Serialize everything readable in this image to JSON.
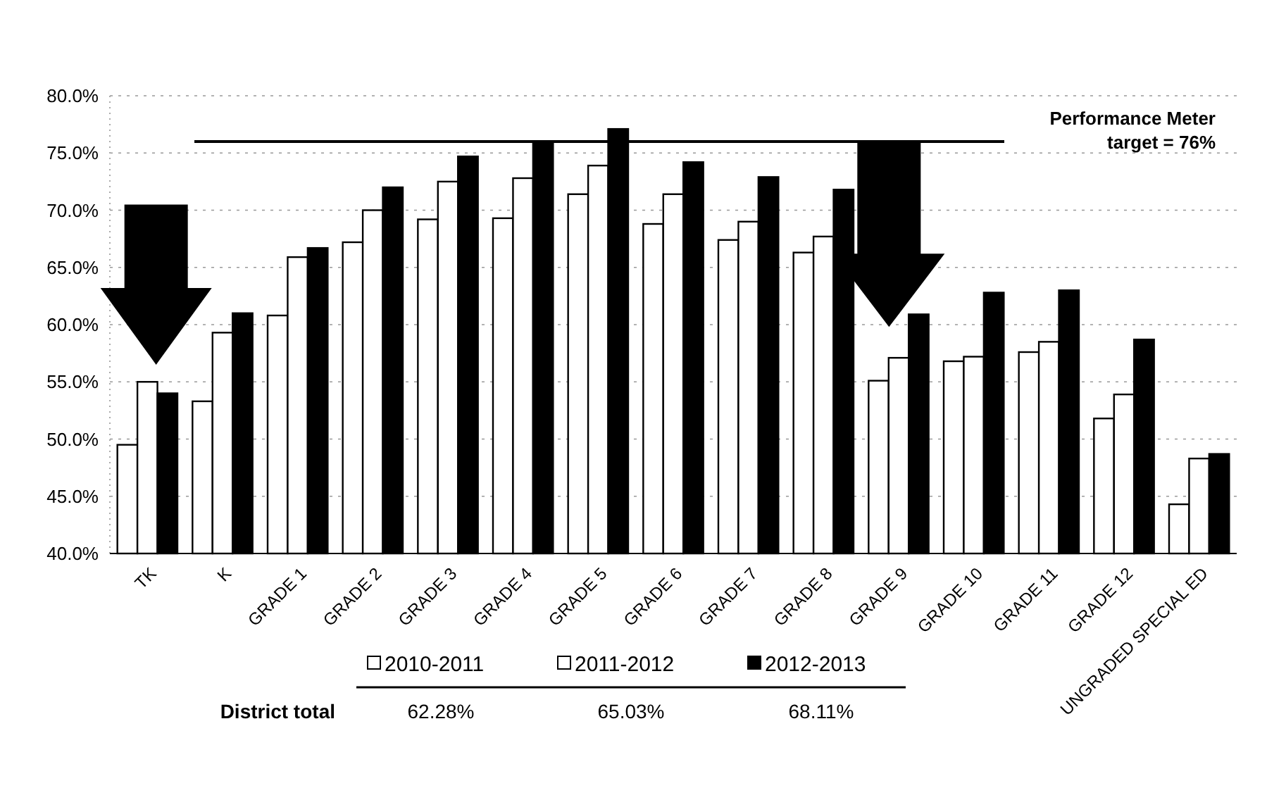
{
  "chart_data": {
    "type": "bar",
    "categories": [
      "TK",
      "K",
      "GRADE 1",
      "GRADE 2",
      "GRADE 3",
      "GRADE 4",
      "GRADE 5",
      "GRADE 6",
      "GRADE 7",
      "GRADE 8",
      "GRADE 9",
      "GRADE 10",
      "GRADE 11",
      "GRADE 12",
      "UNGRADED SPECIAL ED"
    ],
    "series": [
      {
        "name": "2010-2011",
        "color": "#ffffff",
        "values": [
          49.5,
          53.3,
          60.8,
          67.2,
          69.2,
          69.3,
          71.4,
          68.8,
          67.4,
          66.3,
          55.1,
          56.8,
          57.6,
          51.8,
          44.3
        ]
      },
      {
        "name": "2011-2012",
        "color": "#ffffff",
        "values": [
          55.0,
          59.3,
          65.9,
          70.0,
          72.5,
          72.8,
          73.9,
          71.4,
          69.0,
          67.7,
          57.1,
          57.2,
          58.5,
          53.9,
          48.3
        ]
      },
      {
        "name": "2012-2013",
        "color": "#000000",
        "values": [
          54.0,
          61.0,
          66.7,
          72.0,
          74.7,
          76.0,
          77.1,
          74.2,
          72.9,
          71.8,
          60.9,
          62.8,
          63.0,
          58.7,
          48.7
        ]
      }
    ],
    "ylim": [
      40,
      80
    ],
    "yticks": [
      {
        "value": 40,
        "label": "40.0%"
      },
      {
        "value": 45,
        "label": "45.0%"
      },
      {
        "value": 50,
        "label": "50.0%"
      },
      {
        "value": 55,
        "label": "55.0%"
      },
      {
        "value": 60,
        "label": "60.0%"
      },
      {
        "value": 65,
        "label": "65.0%"
      },
      {
        "value": 70,
        "label": "70.0%"
      },
      {
        "value": 75,
        "label": "75.0%"
      },
      {
        "value": 80,
        "label": "80.0%"
      }
    ],
    "grid": "y",
    "legend": "bottom",
    "ref_lines": [
      {
        "axis": "y",
        "value": 76,
        "label": "Performance Meter\ntarget = 76%",
        "color": "#000000"
      }
    ],
    "annotations": [
      "District total",
      "62.28%",
      "65.03%",
      "68.11%"
    ]
  }
}
